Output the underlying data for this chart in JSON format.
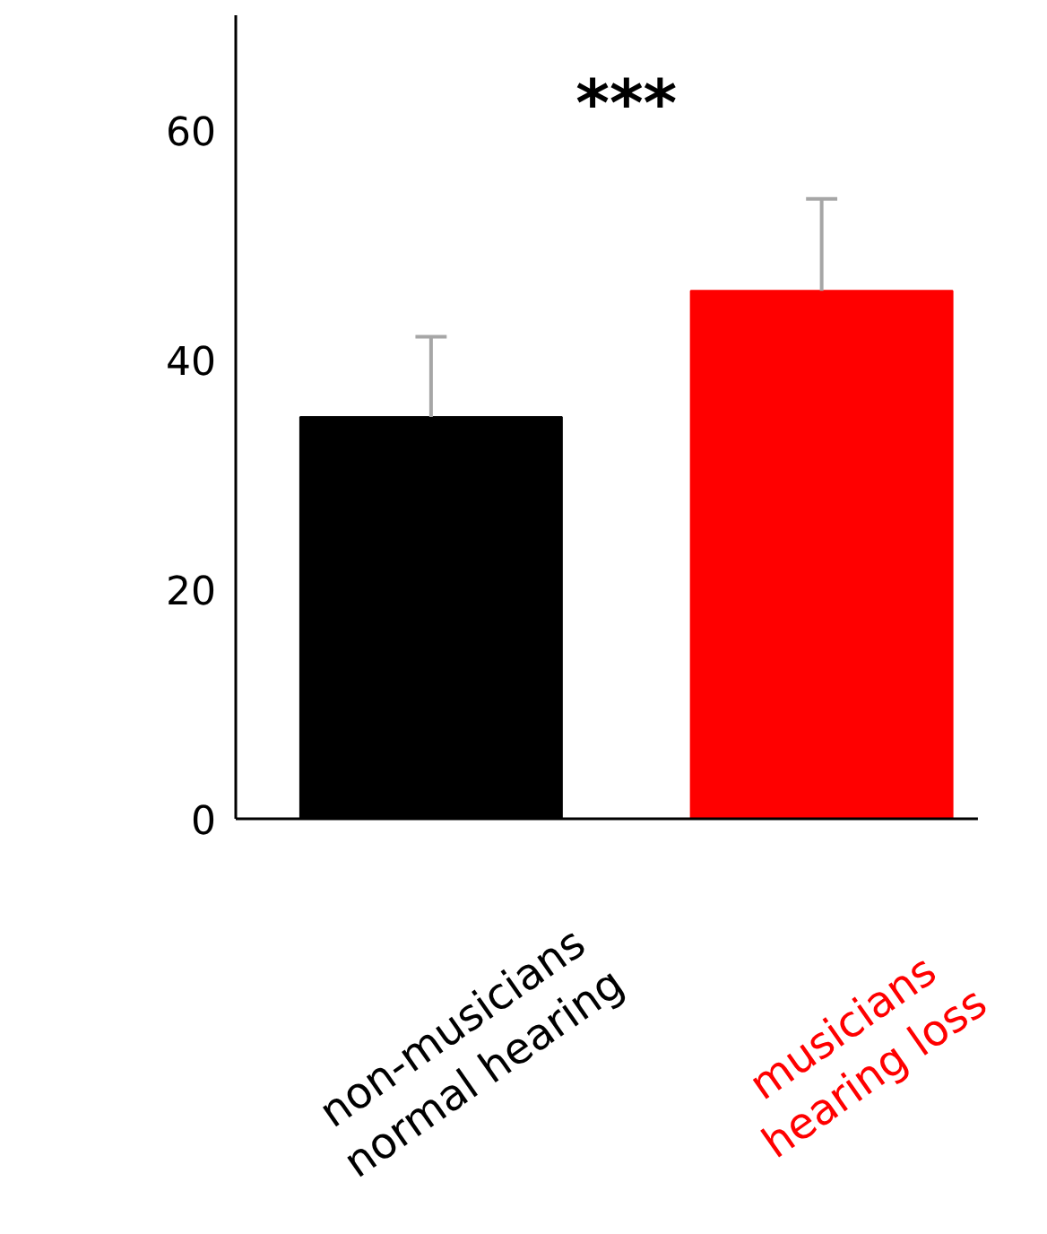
{
  "chart_data": {
    "type": "bar",
    "categories": [
      "non-musicians\nnormal hearing",
      "musicians\nhearing loss"
    ],
    "values": [
      35,
      46
    ],
    "colors": [
      "#000000",
      "#ff0000"
    ],
    "errors": [
      [
        35,
        42
      ],
      [
        46,
        54
      ]
    ],
    "ylim": [
      0,
      70
    ],
    "yticks": [
      0,
      20,
      40,
      60
    ],
    "grid": false,
    "annotations": [
      "***"
    ]
  }
}
